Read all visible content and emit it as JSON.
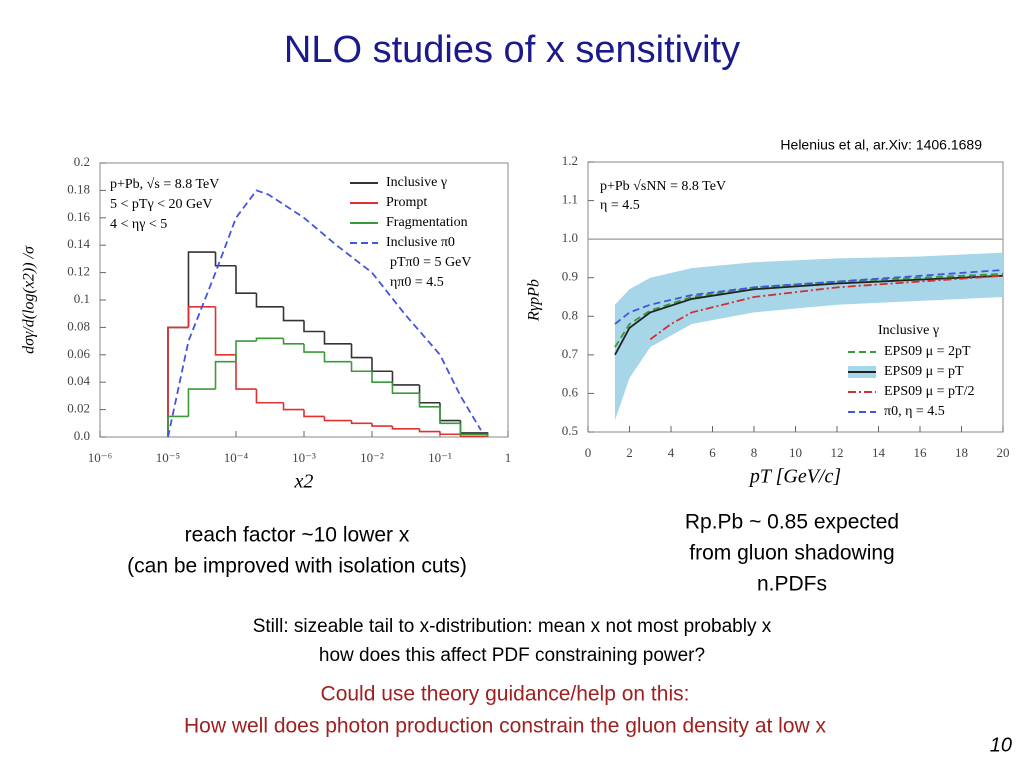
{
  "slide": {
    "title": "NLO studies of x sensitivity",
    "citation": "Helenius et al, ar.Xiv: 1406.1689",
    "left_note": [
      "reach factor ~10 lower x",
      "(can be improved with isolation cuts)"
    ],
    "right_note": [
      "Rp.Pb ~ 0.85 expected",
      "from gluon shadowing",
      "n.PDFs"
    ],
    "question": [
      "Still: sizeable tail to x-distribution: mean x not most probably x",
      "how does this affect PDF constraining power?"
    ],
    "request": [
      "Could use theory guidance/help on this:",
      "How well does photon production constrain the gluon density at low x"
    ],
    "page_number": "10"
  },
  "chart_data": [
    {
      "type": "histogram",
      "xlabel": "x2",
      "ylabel": "dσγ/d(log(x2)) /σ",
      "annotations": [
        "p+Pb, √s = 8.8 TeV",
        "5 < pTγ < 20 GeV",
        "4 < ηγ < 5",
        "pTπ0 = 5 GeV",
        "ηπ0 = 4.5"
      ],
      "xscale": "log",
      "xlim": [
        1e-06,
        1
      ],
      "ylim": [
        0,
        0.2
      ],
      "xticks": [
        {
          "value": 1e-06,
          "label": "10⁻⁶"
        },
        {
          "value": 1e-05,
          "label": "10⁻⁵"
        },
        {
          "value": 0.0001,
          "label": "10⁻⁴"
        },
        {
          "value": 0.001,
          "label": "10⁻³"
        },
        {
          "value": 0.01,
          "label": "10⁻²"
        },
        {
          "value": 0.1,
          "label": "10⁻¹"
        },
        1
      ],
      "yticks": [
        {
          "value": 0,
          "label": "0.0"
        },
        0.02,
        0.04,
        0.06,
        0.08,
        0.1,
        0.12,
        0.14,
        0.16,
        0.18,
        0.2
      ],
      "legend": "upper right",
      "bins": [
        1e-05,
        2e-05,
        5e-05,
        0.0001,
        0.0002,
        0.0005,
        0.001,
        0.002,
        0.005,
        0.01,
        0.02,
        0.05,
        0.1,
        0.2,
        0.5
      ],
      "series": [
        {
          "name": "Inclusive γ",
          "color": "#333333",
          "values": [
            0.08,
            0.135,
            0.125,
            0.105,
            0.095,
            0.085,
            0.077,
            0.068,
            0.058,
            0.048,
            0.038,
            0.025,
            0.012,
            0.003
          ]
        },
        {
          "name": "Prompt",
          "color": "#e03030",
          "values": [
            0.08,
            0.095,
            0.06,
            0.035,
            0.025,
            0.02,
            0.015,
            0.012,
            0.01,
            0.008,
            0.006,
            0.004,
            0.002,
            0.0005
          ]
        },
        {
          "name": "Fragmentation",
          "color": "#3a9a3a",
          "values": [
            0.015,
            0.035,
            0.055,
            0.07,
            0.072,
            0.068,
            0.062,
            0.055,
            0.048,
            0.04,
            0.032,
            0.022,
            0.01,
            0.002
          ]
        },
        {
          "name": "Inclusive π0",
          "color": "#4455dd",
          "style": "dashed",
          "x": [
            1e-05,
            2e-05,
            5e-05,
            0.0001,
            0.0002,
            0.0003,
            0.001,
            0.003,
            0.01,
            0.03,
            0.1,
            0.2,
            0.4
          ],
          "values": [
            0,
            0.07,
            0.12,
            0.16,
            0.18,
            0.177,
            0.16,
            0.14,
            0.12,
            0.09,
            0.06,
            0.03,
            0.005
          ]
        }
      ]
    },
    {
      "type": "line",
      "xlabel": "pT [GeV/c]",
      "ylabel": "RγpPb",
      "annotations": [
        "p+Pb √sNN = 8.8 TeV",
        "η = 4.5"
      ],
      "legend_title": "Inclusive γ",
      "xlim": [
        0,
        20
      ],
      "ylim": [
        0.5,
        1.2
      ],
      "xticks": [
        0,
        2,
        4,
        6,
        8,
        10,
        12,
        14,
        16,
        18,
        20
      ],
      "yticks": [
        0.5,
        0.6,
        0.7,
        0.8,
        0.9,
        {
          "value": 1,
          "label": "1.0"
        },
        1.1,
        1.2
      ],
      "hline": 1,
      "legend": "lower right",
      "series": [
        {
          "name": "EPS09 μ = 2pT",
          "color": "#3a9a3a",
          "style": "dashed",
          "x": [
            1.3,
            2,
            3,
            5,
            8,
            12,
            16,
            20
          ],
          "values": [
            0.72,
            0.78,
            0.815,
            0.85,
            0.875,
            0.89,
            0.9,
            0.91
          ]
        },
        {
          "name": "EPS09 μ = pT",
          "color": "#222222",
          "band_color": "#a6d6e8",
          "x": [
            1.3,
            2,
            3,
            5,
            8,
            12,
            16,
            20
          ],
          "values": [
            0.7,
            0.77,
            0.81,
            0.845,
            0.87,
            0.885,
            0.895,
            0.905
          ],
          "band_lower": [
            0.53,
            0.64,
            0.72,
            0.78,
            0.81,
            0.83,
            0.84,
            0.85
          ],
          "band_upper": [
            0.83,
            0.87,
            0.9,
            0.925,
            0.94,
            0.95,
            0.955,
            0.965
          ]
        },
        {
          "name": "EPS09 μ = pT/2",
          "color": "#d03030",
          "style": "dashdot",
          "x": [
            3,
            4,
            5,
            8,
            12,
            16,
            20
          ],
          "values": [
            0.74,
            0.78,
            0.81,
            0.85,
            0.875,
            0.89,
            0.905
          ]
        },
        {
          "name": "π0, η = 4.5",
          "color": "#4455dd",
          "style": "dashed",
          "x": [
            1.3,
            2,
            3,
            5,
            8,
            12,
            16,
            20
          ],
          "values": [
            0.78,
            0.81,
            0.83,
            0.855,
            0.875,
            0.89,
            0.905,
            0.92
          ]
        }
      ]
    }
  ]
}
